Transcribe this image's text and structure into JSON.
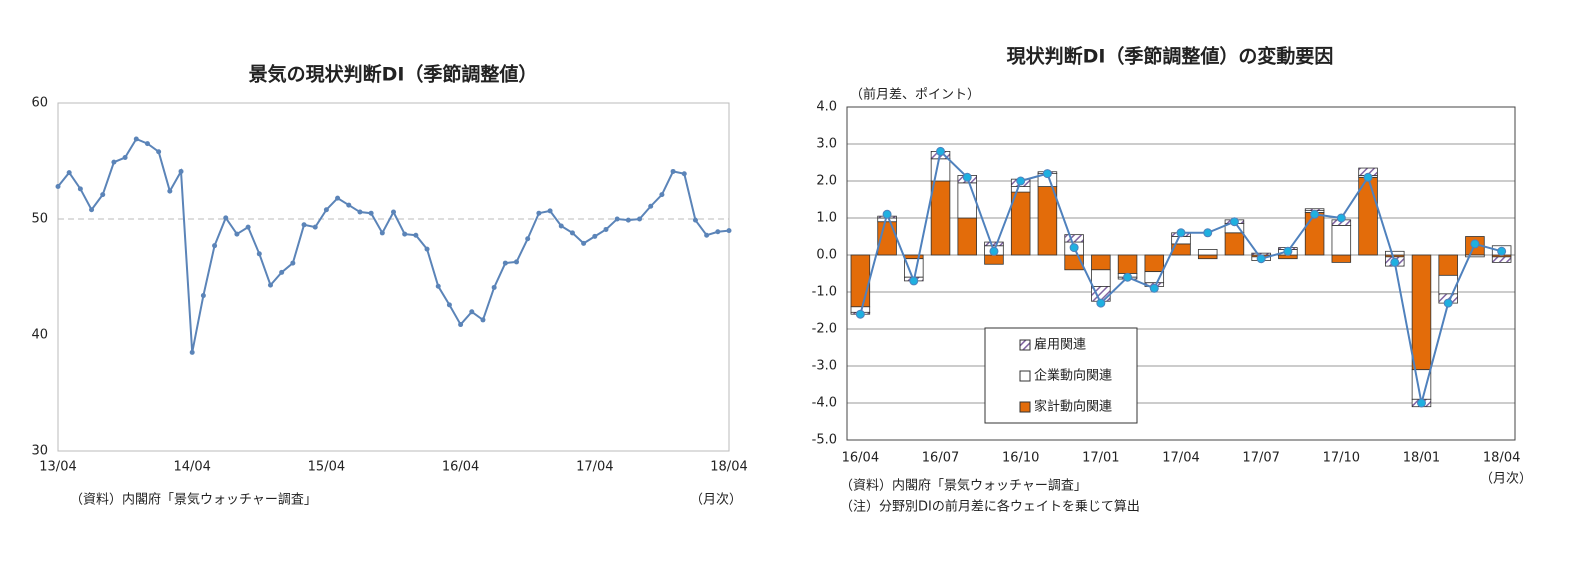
{
  "chart_data": [
    {
      "type": "line",
      "title": "景気の現状判断DI（季節調整値）",
      "categories": [
        "13/04",
        null,
        null,
        null,
        null,
        null,
        null,
        null,
        null,
        null,
        null,
        null,
        "14/04",
        null,
        null,
        null,
        null,
        null,
        null,
        null,
        null,
        null,
        null,
        null,
        "15/04",
        null,
        null,
        null,
        null,
        null,
        null,
        null,
        null,
        null,
        null,
        null,
        "16/04",
        null,
        null,
        null,
        null,
        null,
        null,
        null,
        null,
        null,
        null,
        null,
        "17/04",
        null,
        null,
        null,
        null,
        null,
        null,
        null,
        null,
        null,
        null,
        null,
        "18/04"
      ],
      "values": [
        52.8,
        54.0,
        52.6,
        50.8,
        52.1,
        54.9,
        55.3,
        56.9,
        56.5,
        55.8,
        52.4,
        54.1,
        38.5,
        43.4,
        47.7,
        50.1,
        48.7,
        49.3,
        47.0,
        44.3,
        45.4,
        46.2,
        49.5,
        49.3,
        50.8,
        51.8,
        51.2,
        50.6,
        50.5,
        48.8,
        50.6,
        48.7,
        48.6,
        47.4,
        44.2,
        42.6,
        40.9,
        42.0,
        41.3,
        44.1,
        46.2,
        46.3,
        48.3,
        50.5,
        50.7,
        49.4,
        48.8,
        47.9,
        48.5,
        49.1,
        50.0,
        49.9,
        50.0,
        51.1,
        52.1,
        54.1,
        53.9,
        49.9,
        48.6,
        48.9,
        49.0
      ],
      "color": "#5b84b8",
      "ylim": [
        30,
        60
      ],
      "yticks": [
        30,
        40,
        50,
        60
      ],
      "reference_line": 50,
      "source": "（資料）内閣府「景気ウォッチャー調査」",
      "x_unit": "（月次）"
    },
    {
      "type": "bar",
      "title": "現状判断DI（季節調整値）の変動要因",
      "y_label": "（前月差、ポイント）",
      "categories": [
        "16/04",
        null,
        null,
        "16/07",
        null,
        null,
        "16/10",
        null,
        null,
        "17/01",
        null,
        null,
        "17/04",
        null,
        null,
        "17/07",
        null,
        null,
        "17/10",
        null,
        null,
        "18/01",
        null,
        null,
        "18/04"
      ],
      "series": [
        {
          "name": "家計動向関連",
          "color": "#e36c0a",
          "values": [
            -1.4,
            0.9,
            -0.1,
            2.0,
            1.0,
            -0.25,
            1.7,
            1.85,
            -0.4,
            -0.4,
            -0.5,
            -0.45,
            0.3,
            -0.1,
            0.6,
            -0.05,
            -0.1,
            1.15,
            -0.2,
            2.1,
            -0.05,
            -3.1,
            -0.55,
            0.5,
            -0.05
          ]
        },
        {
          "name": "企業動向関連",
          "color": "#ffffff",
          "values": [
            -0.15,
            0.1,
            -0.5,
            0.6,
            0.95,
            0.25,
            0.15,
            0.35,
            0.35,
            -0.45,
            -0.1,
            -0.3,
            0.2,
            0.15,
            0.25,
            -0.1,
            0.15,
            0.05,
            0.8,
            0.05,
            0.1,
            -0.8,
            -0.5,
            -0.05,
            0.25
          ]
        },
        {
          "name": "雇用関連",
          "color": "#8064a2",
          "pattern": "hatch",
          "values": [
            -0.05,
            0.05,
            -0.1,
            0.2,
            0.2,
            0.1,
            0.2,
            0.05,
            0.2,
            -0.4,
            -0.05,
            -0.1,
            0.1,
            0,
            0.1,
            0.05,
            0.05,
            0.05,
            0.15,
            0.2,
            -0.25,
            -0.2,
            -0.25,
            0,
            -0.15
          ]
        },
        {
          "type": "line",
          "color": "#4f81bd",
          "marker_color": "#1fb0e0",
          "values": [
            -1.6,
            1.1,
            -0.7,
            2.8,
            2.1,
            0.1,
            2.0,
            2.2,
            0.2,
            -1.3,
            -0.6,
            -0.9,
            0.6,
            0.6,
            0.9,
            -0.1,
            0.1,
            1.1,
            1.0,
            2.1,
            -0.2,
            -4.0,
            -1.3,
            0.3,
            0.1
          ]
        }
      ],
      "ylim": [
        -5,
        4
      ],
      "yticks": [
        {
          "value": -5,
          "label": "-5.0"
        },
        {
          "value": -4,
          "label": "-4.0"
        },
        {
          "value": -3,
          "label": "-3.0"
        },
        {
          "value": -2,
          "label": "-2.0"
        },
        {
          "value": -1,
          "label": "-1.0"
        },
        {
          "value": 0,
          "label": "0.0"
        },
        {
          "value": 1,
          "label": "1.0"
        },
        {
          "value": 2,
          "label": "2.0"
        },
        {
          "value": 3,
          "label": "3.0"
        },
        {
          "value": 4,
          "label": "4.0"
        }
      ],
      "grid": true,
      "source": "（資料）内閣府「景気ウォッチャー調査」",
      "note": "（注）分野別DIの前月差に各ウェイトを乗じて算出",
      "x_unit": "（月次）"
    }
  ]
}
